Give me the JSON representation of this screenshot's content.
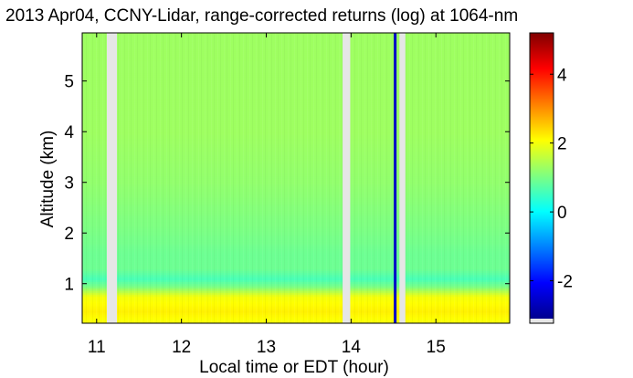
{
  "chart_data": {
    "type": "heatmap",
    "title": "2013 Apr04, CCNY-Lidar, range-corrected returns (log) at 1064-nm",
    "xlabel": "Local time or EDT (hour)",
    "ylabel": "Altitude (km)",
    "xlim": [
      10.83,
      15.87
    ],
    "ylim": [
      0.22,
      5.95
    ],
    "xticks": [
      "11",
      "12",
      "13",
      "14",
      "15"
    ],
    "xtick_values": [
      11,
      12,
      13,
      14,
      15
    ],
    "yticks": [
      "1",
      "2",
      "3",
      "4",
      "5"
    ],
    "ytick_values": [
      1,
      2,
      3,
      4,
      5
    ],
    "colorbar": {
      "range": [
        -3.1,
        5.2
      ],
      "ticks": [
        "-2",
        "0",
        "2",
        "4"
      ],
      "tick_values": [
        -2,
        0,
        2,
        4
      ],
      "colormap": "jet"
    },
    "no_data_intervals": [
      [
        11.12,
        11.24
      ],
      [
        13.9,
        13.99
      ],
      [
        14.57,
        14.64
      ]
    ],
    "low_value_streak": {
      "time": 14.52,
      "value": -2.5
    },
    "profile": [
      {
        "altitude": 0.22,
        "value": 2.0
      },
      {
        "altitude": 0.45,
        "value": 2.2
      },
      {
        "altitude": 0.75,
        "value": 2.0
      },
      {
        "altitude": 0.95,
        "value": 1.0
      },
      {
        "altitude": 1.1,
        "value": 0.6
      },
      {
        "altitude": 1.3,
        "value": 0.9
      },
      {
        "altitude": 1.6,
        "value": 0.9
      },
      {
        "altitude": 2.0,
        "value": 1.0
      },
      {
        "altitude": 2.5,
        "value": 1.1
      },
      {
        "altitude": 3.0,
        "value": 1.2
      },
      {
        "altitude": 4.0,
        "value": 1.3
      },
      {
        "altitude": 5.0,
        "value": 1.3
      },
      {
        "altitude": 5.95,
        "value": 1.3
      }
    ],
    "colors": {
      "no_data": "#e6e6e6",
      "streak": "#1f63d6"
    }
  }
}
